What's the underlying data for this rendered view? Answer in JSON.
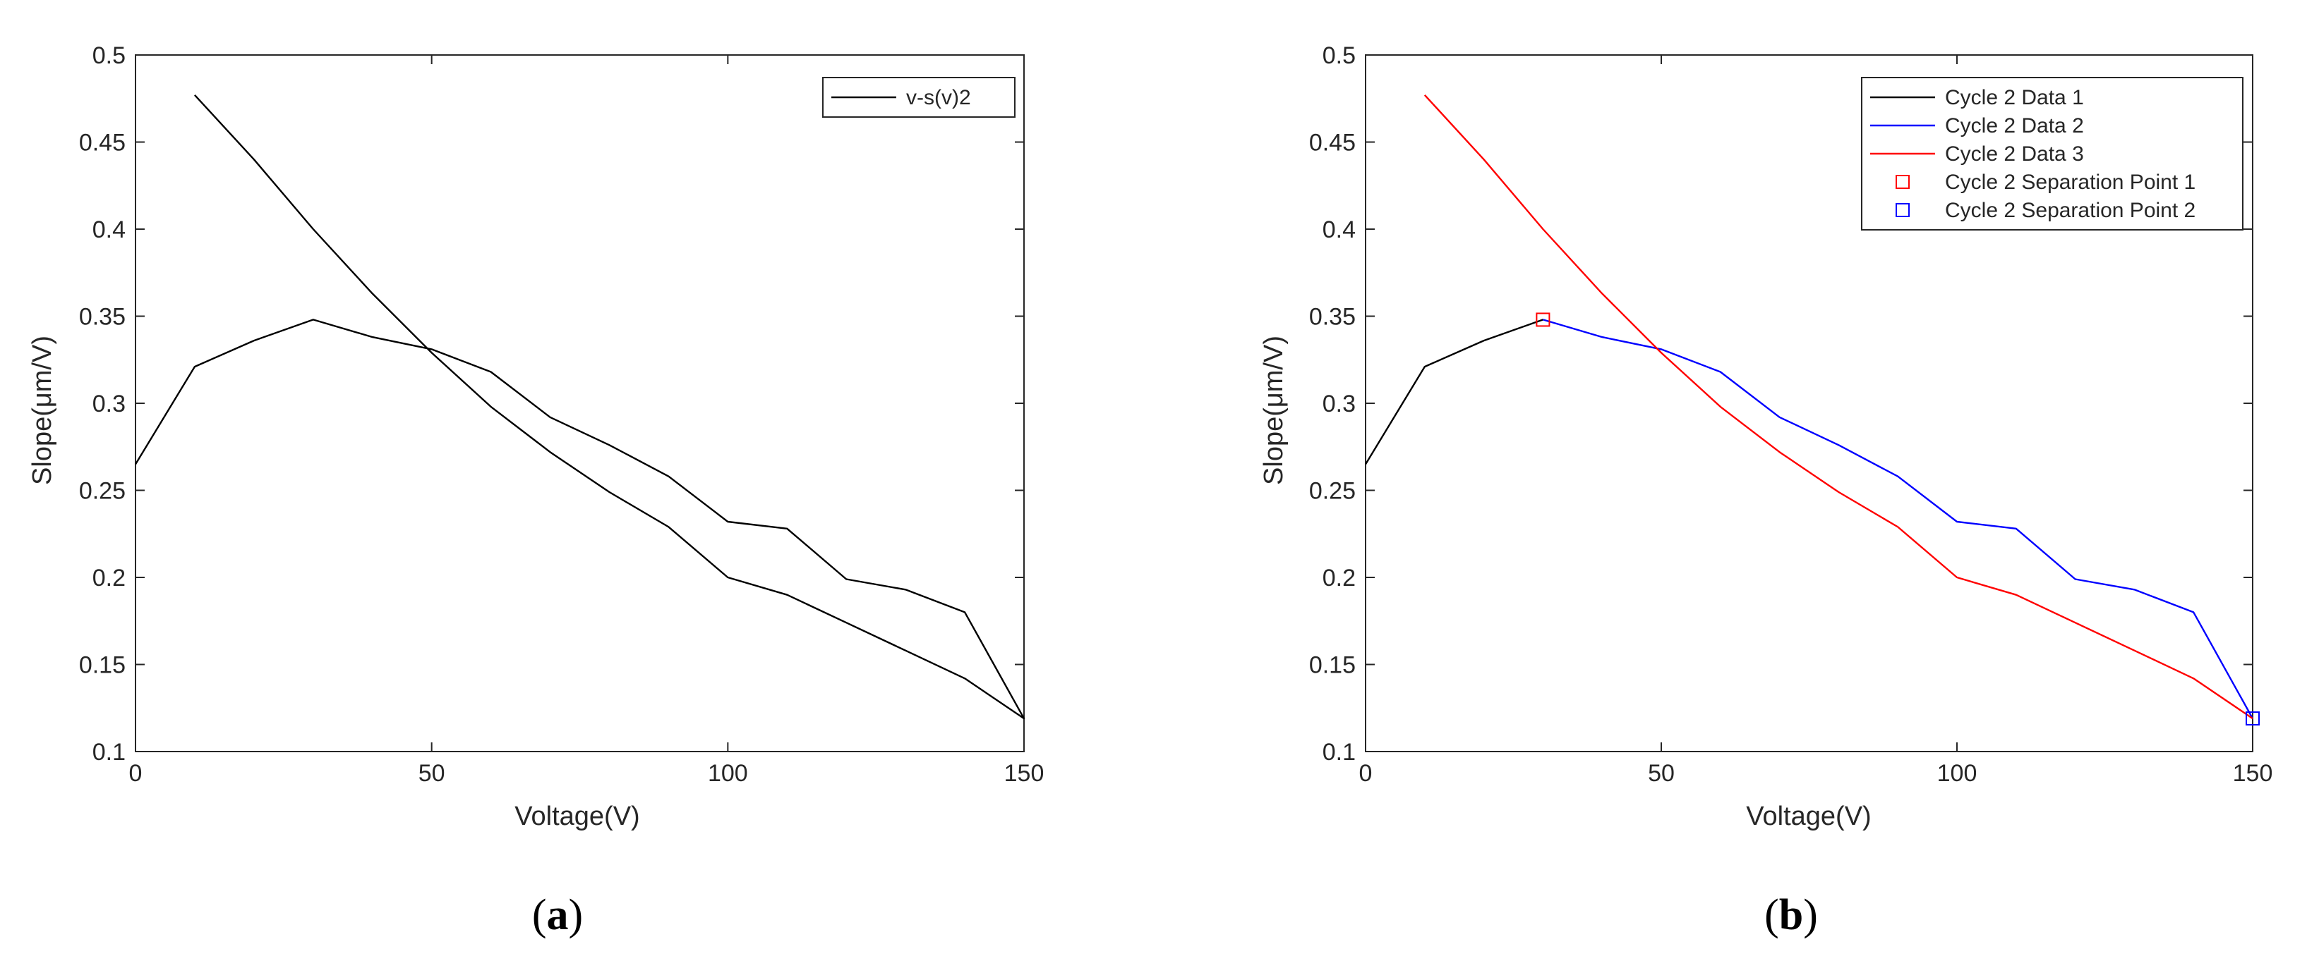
{
  "chart_data": [
    {
      "type": "line",
      "panel_label": {
        "open": "(",
        "letter": "a",
        "close": ")"
      },
      "xlabel": "Voltage(V)",
      "ylabel": "Slope(μm/V)",
      "xlim": [
        0,
        150
      ],
      "ylim": [
        0.1,
        0.5
      ],
      "xticks": [
        0,
        50,
        100,
        150
      ],
      "xtick_labels": [
        "0",
        "50",
        "100",
        "150"
      ],
      "yticks": [
        0.1,
        0.15,
        0.2,
        0.25,
        0.3,
        0.35,
        0.4,
        0.45,
        0.5
      ],
      "ytick_labels": [
        "0.1",
        "0.15",
        "0.2",
        "0.25",
        "0.3",
        "0.35",
        "0.4",
        "0.45",
        "0.5"
      ],
      "grid": false,
      "legend_position": "top-right",
      "series": [
        {
          "name": "v-s(v)2",
          "color": "#000000",
          "marker": "none",
          "in_legend": true,
          "points": [
            [
              0,
              0.265
            ],
            [
              10,
              0.321
            ],
            [
              20,
              0.336
            ],
            [
              30,
              0.348
            ],
            [
              40,
              0.338
            ],
            [
              50,
              0.331
            ],
            [
              60,
              0.318
            ],
            [
              70,
              0.292
            ],
            [
              80,
              0.276
            ],
            [
              90,
              0.258
            ],
            [
              100,
              0.232
            ],
            [
              110,
              0.228
            ],
            [
              120,
              0.199
            ],
            [
              130,
              0.193
            ],
            [
              140,
              0.18
            ],
            [
              150,
              0.119
            ],
            [
              140,
              0.142
            ],
            [
              130,
              0.158
            ],
            [
              120,
              0.174
            ],
            [
              110,
              0.19
            ],
            [
              100,
              0.2
            ],
            [
              90,
              0.229
            ],
            [
              80,
              0.249
            ],
            [
              70,
              0.272
            ],
            [
              60,
              0.298
            ],
            [
              50,
              0.329
            ],
            [
              40,
              0.363
            ],
            [
              30,
              0.4
            ],
            [
              20,
              0.44
            ],
            [
              10,
              0.477
            ]
          ]
        }
      ]
    },
    {
      "type": "line",
      "panel_label": {
        "open": "(",
        "letter": "b",
        "close": ")"
      },
      "xlabel": "Voltage(V)",
      "ylabel": "Slope(μm/V)",
      "xlim": [
        0,
        150
      ],
      "ylim": [
        0.1,
        0.5
      ],
      "xticks": [
        0,
        50,
        100,
        150
      ],
      "xtick_labels": [
        "0",
        "50",
        "100",
        "150"
      ],
      "yticks": [
        0.1,
        0.15,
        0.2,
        0.25,
        0.3,
        0.35,
        0.4,
        0.45,
        0.5
      ],
      "ytick_labels": [
        "0.1",
        "0.15",
        "0.2",
        "0.25",
        "0.3",
        "0.35",
        "0.4",
        "0.45",
        "0.5"
      ],
      "grid": false,
      "legend_position": "top-right",
      "series": [
        {
          "name": "Cycle 2 Data 1",
          "color": "#000000",
          "marker": "none",
          "in_legend": true,
          "points": [
            [
              0,
              0.265
            ],
            [
              10,
              0.321
            ],
            [
              20,
              0.336
            ],
            [
              30,
              0.348
            ]
          ]
        },
        {
          "name": "Cycle 2 Data 2",
          "color": "#0000ff",
          "marker": "none",
          "in_legend": true,
          "points": [
            [
              30,
              0.348
            ],
            [
              40,
              0.338
            ],
            [
              50,
              0.331
            ],
            [
              60,
              0.318
            ],
            [
              70,
              0.292
            ],
            [
              80,
              0.276
            ],
            [
              90,
              0.258
            ],
            [
              100,
              0.232
            ],
            [
              110,
              0.228
            ],
            [
              120,
              0.199
            ],
            [
              130,
              0.193
            ],
            [
              140,
              0.18
            ],
            [
              150,
              0.119
            ]
          ]
        },
        {
          "name": "Cycle 2 Data 3",
          "color": "#ff0000",
          "marker": "none",
          "in_legend": true,
          "points": [
            [
              150,
              0.119
            ],
            [
              140,
              0.142
            ],
            [
              130,
              0.158
            ],
            [
              120,
              0.174
            ],
            [
              110,
              0.19
            ],
            [
              100,
              0.2
            ],
            [
              90,
              0.229
            ],
            [
              80,
              0.249
            ],
            [
              70,
              0.272
            ],
            [
              60,
              0.298
            ],
            [
              50,
              0.329
            ],
            [
              40,
              0.363
            ],
            [
              30,
              0.4
            ],
            [
              20,
              0.44
            ],
            [
              10,
              0.477
            ]
          ]
        },
        {
          "name": "Cycle 2 Separation Point 1",
          "color": "#ff0000",
          "marker": "square",
          "in_legend": true,
          "points": [
            [
              30,
              0.348
            ]
          ]
        },
        {
          "name": "Cycle 2 Separation Point 2",
          "color": "#0000ff",
          "marker": "square",
          "in_legend": true,
          "points": [
            [
              150,
              0.119
            ]
          ]
        }
      ]
    }
  ]
}
